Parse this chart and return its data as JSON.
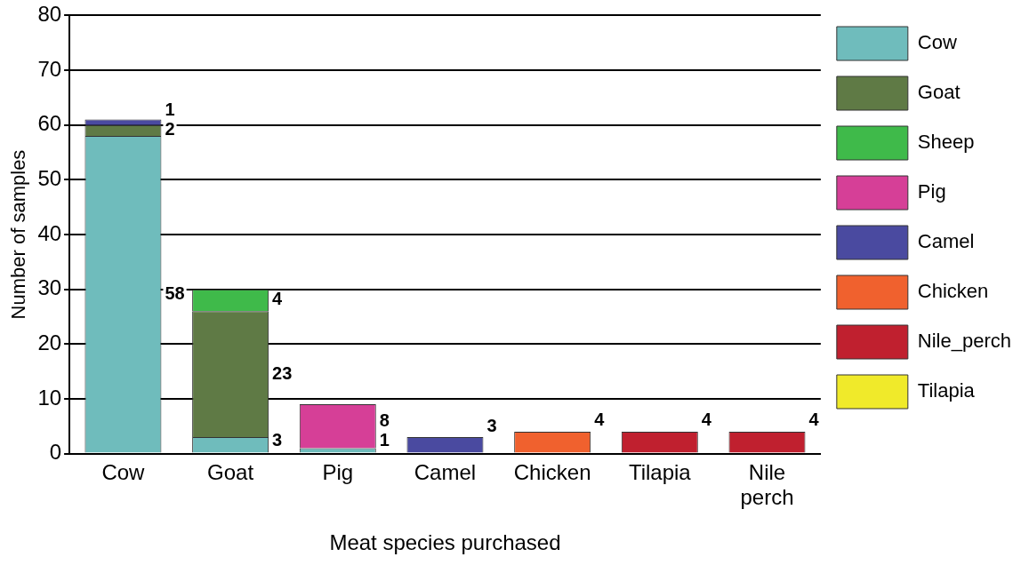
{
  "chart_data": {
    "type": "bar",
    "stacked": true,
    "xlabel": "Meat species purchased",
    "ylabel": "Number of samples",
    "categories": [
      "Cow",
      "Goat",
      "Pig",
      "Camel",
      "Chicken",
      "Tilapia",
      "Nile perch"
    ],
    "series": [
      {
        "name": "Cow",
        "color": "#6fbcbc",
        "values": [
          58,
          3,
          1,
          null,
          null,
          null,
          null
        ]
      },
      {
        "name": "Goat",
        "color": "#5f7a45",
        "values": [
          2,
          23,
          null,
          null,
          null,
          null,
          null
        ]
      },
      {
        "name": "Sheep",
        "color": "#3fba4a",
        "values": [
          null,
          4,
          null,
          null,
          null,
          null,
          null
        ]
      },
      {
        "name": "Pig",
        "color": "#d63f97",
        "values": [
          null,
          null,
          8,
          null,
          null,
          null,
          null
        ]
      },
      {
        "name": "Camel",
        "color": "#4a4aa0",
        "values": [
          1,
          null,
          null,
          3,
          null,
          null,
          null
        ]
      },
      {
        "name": "Chicken",
        "color": "#f0612e",
        "values": [
          null,
          null,
          null,
          null,
          4,
          null,
          null
        ]
      },
      {
        "name": "Nile_perch",
        "color": "#c0202f",
        "values": [
          null,
          null,
          null,
          null,
          null,
          4,
          4
        ]
      },
      {
        "name": "Tilapia",
        "color": "#f0ea2a",
        "values": [
          null,
          null,
          null,
          null,
          null,
          null,
          null
        ]
      }
    ],
    "ylim": [
      0,
      80
    ],
    "yticks": [
      0,
      10,
      20,
      30,
      40,
      50,
      60,
      70,
      80
    ],
    "grid": "y",
    "legend": "right",
    "data_labels": true
  }
}
